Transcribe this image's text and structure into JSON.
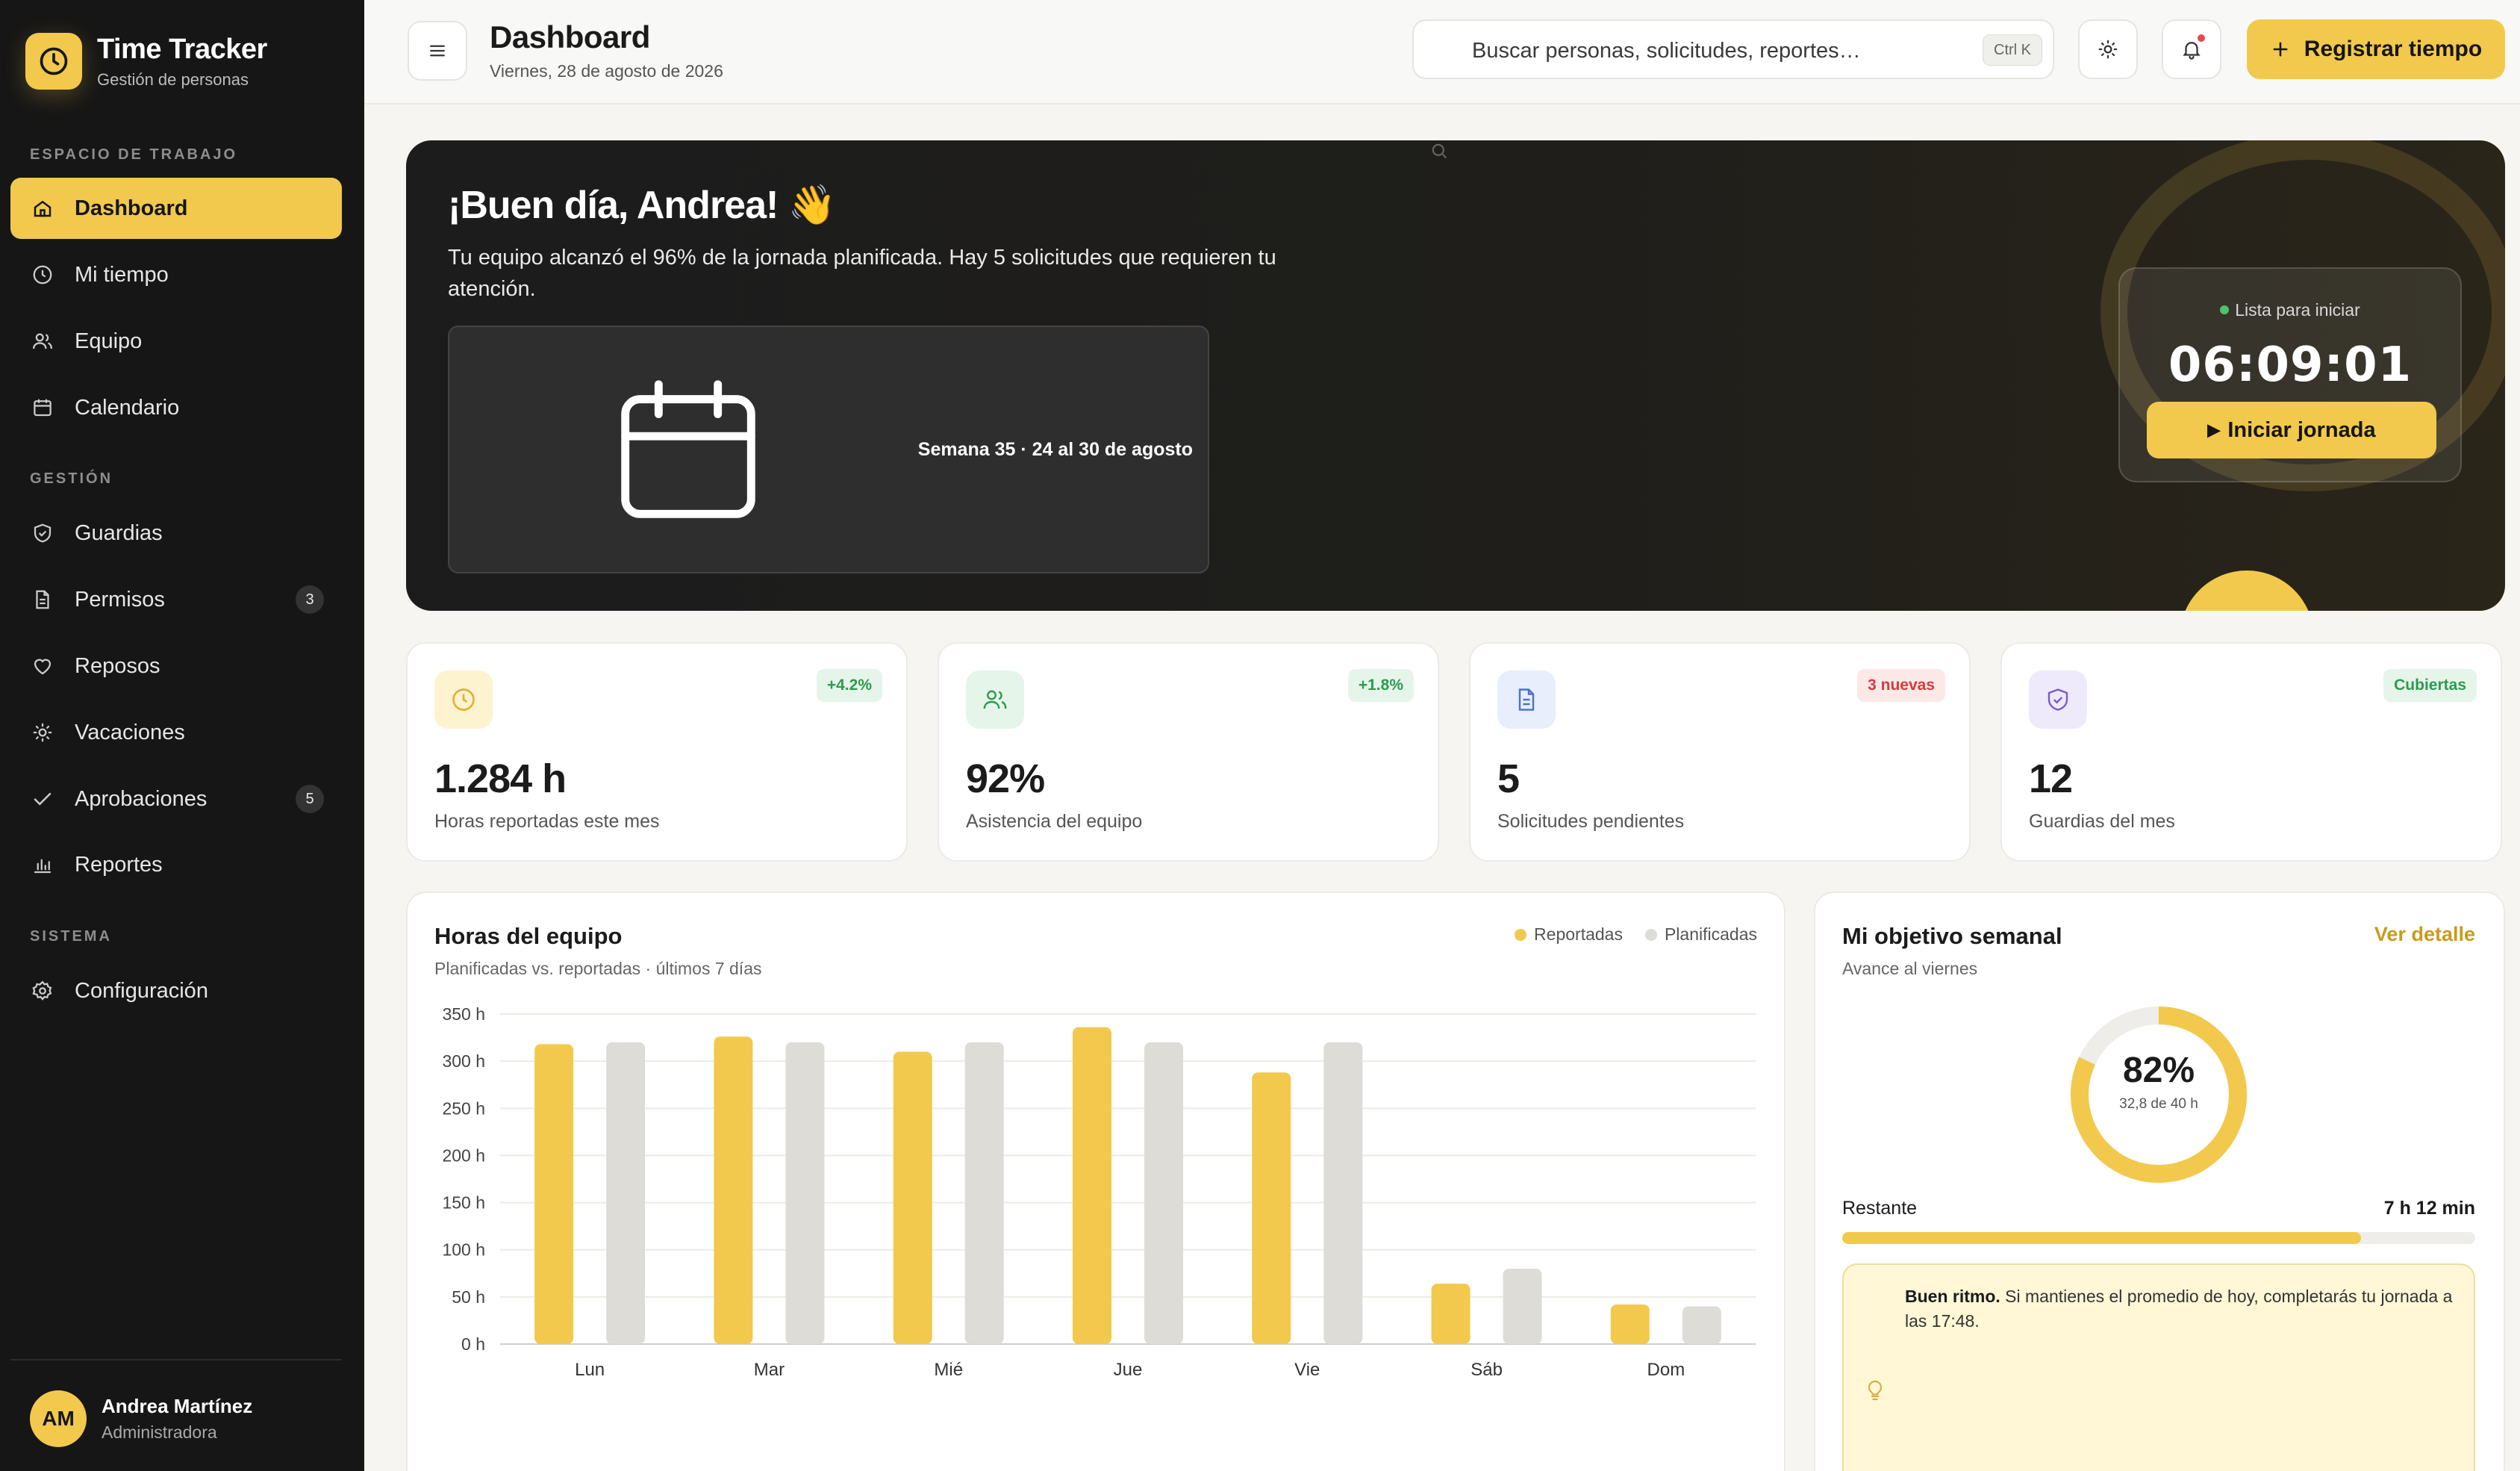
{
  "brand": {
    "title": "Time Tracker",
    "subtitle": "Gestión de personas"
  },
  "sidebar": {
    "sections": [
      "ESPACIO DE TRABAJO",
      "GESTIÓN",
      "SISTEMA"
    ],
    "items": [
      {
        "label": "Dashboard",
        "icon": "home-icon",
        "active": true
      },
      {
        "label": "Mi tiempo",
        "icon": "clock-icon"
      },
      {
        "label": "Equipo",
        "icon": "users-icon"
      },
      {
        "label": "Calendario",
        "icon": "calendar-icon"
      },
      {
        "label": "Guardias",
        "icon": "shield-icon"
      },
      {
        "label": "Permisos",
        "icon": "document-icon",
        "badge": "3"
      },
      {
        "label": "Reposos",
        "icon": "heart-icon"
      },
      {
        "label": "Vacaciones",
        "icon": "sun-icon"
      },
      {
        "label": "Aprobaciones",
        "icon": "check-icon",
        "badge": "5"
      },
      {
        "label": "Reportes",
        "icon": "bar-chart-icon"
      },
      {
        "label": "Configuración",
        "icon": "gear-icon"
      }
    ]
  },
  "user": {
    "initials": "AM",
    "name": "Andrea Martínez",
    "role": "Administradora"
  },
  "header": {
    "title": "Dashboard",
    "date": "Viernes, 28 de agosto de 2026",
    "search_placeholder": "Buscar personas, solicitudes, reportes…",
    "search_shortcut": "Ctrl K",
    "primary_action": "Registrar tiempo"
  },
  "hero": {
    "greeting": "¡Buen día, Andrea! 👋",
    "message": "Tu equipo alcanzó el 96% de la jornada planificada. Hay 5 solicitudes que requieren tu atención.",
    "week": "Semana 35 · 24 al 30 de agosto",
    "timer_status": "Lista para iniciar",
    "timer_value": "06:09:01",
    "timer_button": "Iniciar jornada"
  },
  "stats": [
    {
      "value": "1.284 h",
      "label": "Horas reportadas este mes",
      "badge": "+4.2%",
      "icon": "clock-icon",
      "tone": "yellow"
    },
    {
      "value": "92%",
      "label": "Asistencia del equipo",
      "badge": "+1.8%",
      "icon": "users-icon",
      "tone": "green"
    },
    {
      "value": "5",
      "label": "Solicitudes pendientes",
      "badge": "3 nuevas",
      "icon": "document-icon",
      "tone": "blue"
    },
    {
      "value": "12",
      "label": "Guardias del mes",
      "badge": "Cubiertas",
      "icon": "shield-check-icon",
      "tone": "purple"
    }
  ],
  "team_hours": {
    "title": "Horas del equipo",
    "subtitle": "Planificadas vs. reportadas · últimos 7 días",
    "legend_reported": "Reportadas",
    "legend_planned": "Planificadas"
  },
  "chart_data": {
    "type": "bar",
    "categories": [
      "Lun",
      "Mar",
      "Mié",
      "Jue",
      "Vie",
      "Sáb",
      "Dom"
    ],
    "series": [
      {
        "name": "Reportadas",
        "values": [
          318,
          326,
          310,
          336,
          288,
          64,
          42
        ],
        "color": "#f2c94c"
      },
      {
        "name": "Planificadas",
        "values": [
          320,
          320,
          320,
          320,
          320,
          80,
          40
        ],
        "color": "#dedcd6"
      }
    ],
    "yticks": [
      "0 h",
      "50 h",
      "100 h",
      "150 h",
      "200 h",
      "250 h",
      "300 h",
      "350 h"
    ],
    "ylim": [
      0,
      350
    ],
    "grid": true
  },
  "goal": {
    "title": "Mi objetivo semanal",
    "subtitle": "Avance al viernes",
    "link": "Ver detalle",
    "percent": "82%",
    "detail": "32,8 de 40 h",
    "progress": 0.82,
    "remaining_label": "Restante",
    "remaining_value": "7 h 12 min",
    "tip_bold": "Buen ritmo.",
    "tip_text": " Si mantienes el promedio de hoy, completarás tu jornada a las 17:48."
  },
  "colors": {
    "accent": "#f2c94c",
    "sidebar": "#161616",
    "planned": "#dedcd6"
  }
}
